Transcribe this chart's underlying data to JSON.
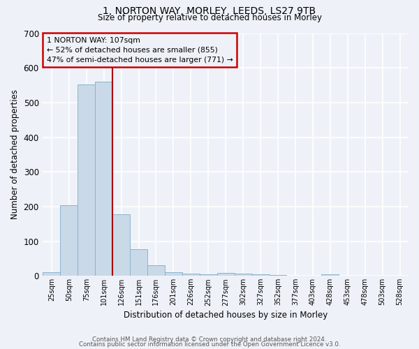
{
  "title": "1, NORTON WAY, MORLEY, LEEDS, LS27 9TB",
  "subtitle": "Size of property relative to detached houses in Morley",
  "xlabel": "Distribution of detached houses by size in Morley",
  "ylabel": "Number of detached properties",
  "bar_labels": [
    "25sqm",
    "50sqm",
    "75sqm",
    "101sqm",
    "126sqm",
    "151sqm",
    "176sqm",
    "201sqm",
    "226sqm",
    "252sqm",
    "277sqm",
    "302sqm",
    "327sqm",
    "352sqm",
    "377sqm",
    "403sqm",
    "428sqm",
    "453sqm",
    "478sqm",
    "503sqm",
    "528sqm"
  ],
  "bar_values": [
    10,
    203,
    552,
    560,
    178,
    78,
    30,
    10,
    7,
    5,
    8,
    7,
    5,
    3,
    0,
    0,
    5,
    0,
    0,
    0,
    0
  ],
  "bar_color": "#c9d9e8",
  "bar_edge_color": "#8ab4cc",
  "vline_x": 3.5,
  "vline_color": "#aa0000",
  "ylim": [
    0,
    700
  ],
  "yticks": [
    0,
    100,
    200,
    300,
    400,
    500,
    600,
    700
  ],
  "annotation_title": "1 NORTON WAY: 107sqm",
  "annotation_line1": "← 52% of detached houses are smaller (855)",
  "annotation_line2": "47% of semi-detached houses are larger (771) →",
  "annotation_box_color": "#cc0000",
  "footer_line1": "Contains HM Land Registry data © Crown copyright and database right 2024.",
  "footer_line2": "Contains public sector information licensed under the Open Government Licence v3.0.",
  "background_color": "#eef2f8",
  "grid_color": "#ffffff"
}
